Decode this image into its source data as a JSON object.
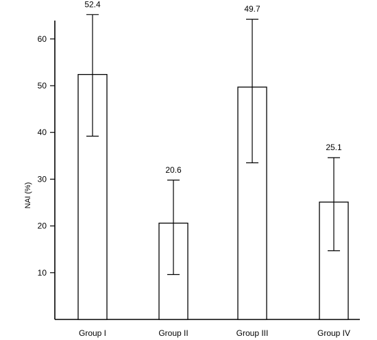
{
  "chart_data": {
    "type": "bar",
    "title": "",
    "xlabel": "",
    "ylabel": "NAI (%)",
    "ylim": [
      0,
      66
    ],
    "yticks": [
      10,
      20,
      30,
      40,
      50,
      60
    ],
    "grid": false,
    "categories": [
      "Group I",
      "Group II",
      "Group III",
      "Group IV"
    ],
    "values": [
      52.4,
      20.6,
      49.7,
      25.1
    ],
    "error_low": [
      39.2,
      9.6,
      33.5,
      14.7
    ],
    "error_high": [
      65.2,
      29.8,
      64.2,
      34.6
    ],
    "data_labels": [
      "52.4",
      "20.6",
      "49.7",
      "25.1"
    ]
  }
}
